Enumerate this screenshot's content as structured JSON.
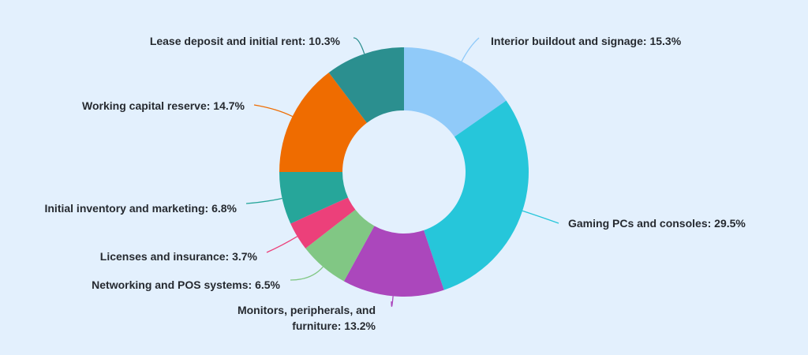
{
  "chart_data": {
    "type": "pie",
    "variant": "donut",
    "title": "",
    "start_angle_deg": 0,
    "direction": "clockwise",
    "slices": [
      {
        "label": "Interior buildout and signage",
        "value": 15.3,
        "display": "Interior buildout and signage: 15.3%",
        "color": "#90caf9"
      },
      {
        "label": "Gaming PCs and consoles",
        "value": 29.5,
        "display": "Gaming PCs and consoles: 29.5%",
        "color": "#26c6da"
      },
      {
        "label": "Monitors, peripherals, and furniture",
        "value": 13.2,
        "display_lines": [
          "Monitors, peripherals, and",
          "furniture: 13.2%"
        ],
        "color": "#ab47bc"
      },
      {
        "label": "Networking and POS systems",
        "value": 6.5,
        "display": "Networking and POS systems: 6.5%",
        "color": "#81c784"
      },
      {
        "label": "Licenses and insurance",
        "value": 3.7,
        "display": "Licenses and insurance: 3.7%",
        "color": "#ec407a"
      },
      {
        "label": "Initial inventory and marketing",
        "value": 6.8,
        "display": "Initial inventory and marketing: 6.8%",
        "color": "#26a69a"
      },
      {
        "label": "Working capital reserve",
        "value": 14.7,
        "display": "Working capital reserve: 14.7%",
        "color": "#ef6c00"
      },
      {
        "label": "Lease deposit and initial rent",
        "value": 10.3,
        "display": "Lease deposit and initial rent: 10.3%",
        "color": "#2b8f8f"
      }
    ]
  }
}
